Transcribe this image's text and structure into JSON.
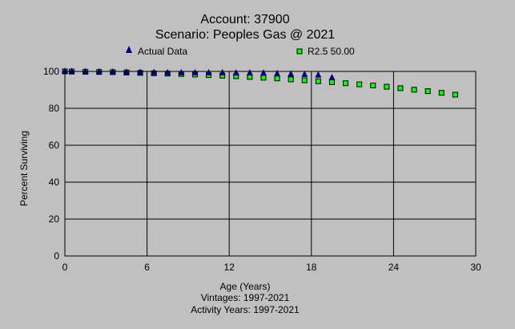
{
  "chart_data": {
    "type": "scatter",
    "title": "Account: 37900",
    "subtitle": "Scenario: Peoples Gas @ 2021",
    "xlabel": "Age (Years)",
    "ylabel": "Percent Surviving",
    "footer_lines": [
      "Vintages: 1997-2021",
      "Activity Years: 1997-2021"
    ],
    "xlim": [
      0,
      30
    ],
    "ylim": [
      0,
      100
    ],
    "x_ticks": [
      "0",
      "6",
      "12",
      "18",
      "24",
      "30"
    ],
    "y_ticks": [
      "0",
      "20",
      "40",
      "60",
      "80",
      "100"
    ],
    "grid": true,
    "legend_position": "top",
    "colors": {
      "background": "#C0C0C0",
      "actual": "#000080",
      "curve": "#00FF00",
      "curve_border": "#000000",
      "grid": "#000000"
    },
    "series": [
      {
        "name": "Actual Data",
        "marker": "triangle",
        "x": [
          0,
          0.5,
          1.5,
          2.5,
          3.5,
          4.5,
          5.5,
          6.5,
          7.5,
          8.5,
          9.5,
          10.5,
          11.5,
          12.5,
          13.5,
          14.5,
          15.5,
          16.5,
          17.5,
          18.5,
          19.5
        ],
        "y": [
          100,
          100,
          99.8,
          99.7,
          99.6,
          99.5,
          99.4,
          99.3,
          99.2,
          99.2,
          99.2,
          99.2,
          99.2,
          99.1,
          99.1,
          99.0,
          98.7,
          98.5,
          98.3,
          98.0,
          96.5
        ]
      },
      {
        "name": "R2.5 50.00",
        "marker": "square",
        "x": [
          0,
          0.5,
          1.5,
          2.5,
          3.5,
          4.5,
          5.5,
          6.5,
          7.5,
          8.5,
          9.5,
          10.5,
          11.5,
          12.5,
          13.5,
          14.5,
          15.5,
          16.5,
          17.5,
          18.5,
          19.5,
          20.5,
          21.5,
          22.5,
          23.5,
          24.5,
          25.5,
          26.5,
          27.5,
          28.5
        ],
        "y": [
          100,
          99.9,
          99.8,
          99.7,
          99.6,
          99.4,
          99.2,
          99.0,
          98.8,
          98.6,
          98.3,
          98.0,
          97.7,
          97.4,
          97.0,
          96.6,
          96.2,
          95.7,
          95.2,
          94.7,
          94.2,
          93.6,
          93.0,
          92.4,
          91.7,
          90.9,
          90.1,
          89.3,
          88.4,
          87.4
        ]
      }
    ]
  }
}
